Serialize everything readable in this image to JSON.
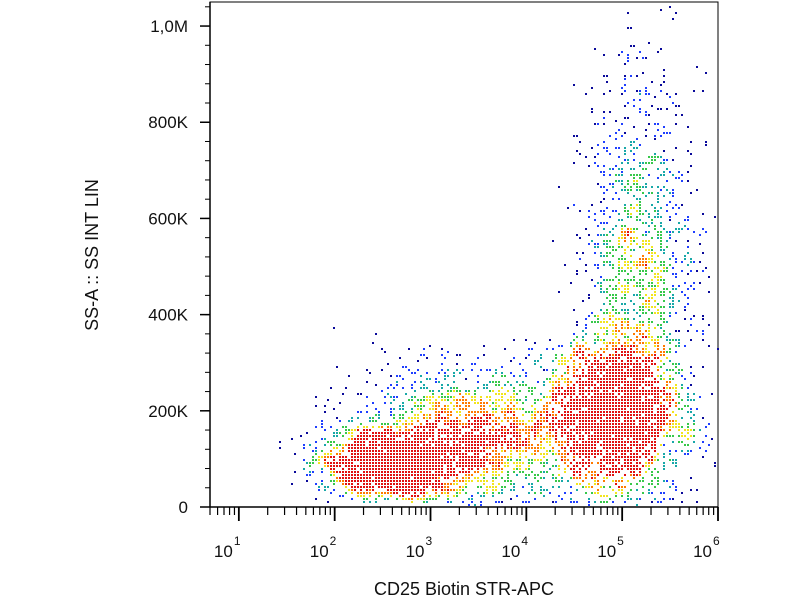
{
  "chart_data": {
    "type": "scatter",
    "style": "density-dot-plot",
    "xlabel": "CD25 Biotin STR-APC",
    "ylabel": "SS-A :: SS INT LIN",
    "x_scale": "log",
    "y_scale": "linear",
    "xlim": [
      5,
      1000000
    ],
    "ylim": [
      0,
      1050000
    ],
    "x_ticks": [
      {
        "value": 10,
        "base": "10",
        "exp": "1"
      },
      {
        "value": 100,
        "base": "10",
        "exp": "2"
      },
      {
        "value": 1000,
        "base": "10",
        "exp": "3"
      },
      {
        "value": 10000,
        "base": "10",
        "exp": "4"
      },
      {
        "value": 100000,
        "base": "10",
        "exp": "5"
      },
      {
        "value": 1000000,
        "base": "10",
        "exp": "6"
      }
    ],
    "y_ticks": [
      {
        "value": 0,
        "label": "0"
      },
      {
        "value": 200000,
        "label": "200K"
      },
      {
        "value": 400000,
        "label": "400K"
      },
      {
        "value": 600000,
        "label": "600K"
      },
      {
        "value": 800000,
        "label": "800K"
      },
      {
        "value": 1000000,
        "label": "1,0M"
      }
    ],
    "populations": [
      {
        "x_center": 400,
        "y_center": 90000,
        "x_spread_decades": 0.35,
        "y_spread": 35000,
        "weight": 0.22
      },
      {
        "x_center": 80000,
        "y_center": 190000,
        "x_spread_decades": 0.35,
        "y_spread": 75000,
        "weight": 0.4
      },
      {
        "x_center": 2500,
        "y_center": 150000,
        "x_spread_decades": 0.6,
        "y_spread": 70000,
        "weight": 0.22
      },
      {
        "x_center": 150000,
        "y_center": 480000,
        "x_spread_decades": 0.3,
        "y_spread": 200000,
        "weight": 0.16
      }
    ],
    "grid": false,
    "legend": "none",
    "density_colors": [
      "#0a0a9a",
      "#1f3fff",
      "#18a8a8",
      "#37c84a",
      "#f2e51d",
      "#ff7a00",
      "#e01010"
    ]
  }
}
